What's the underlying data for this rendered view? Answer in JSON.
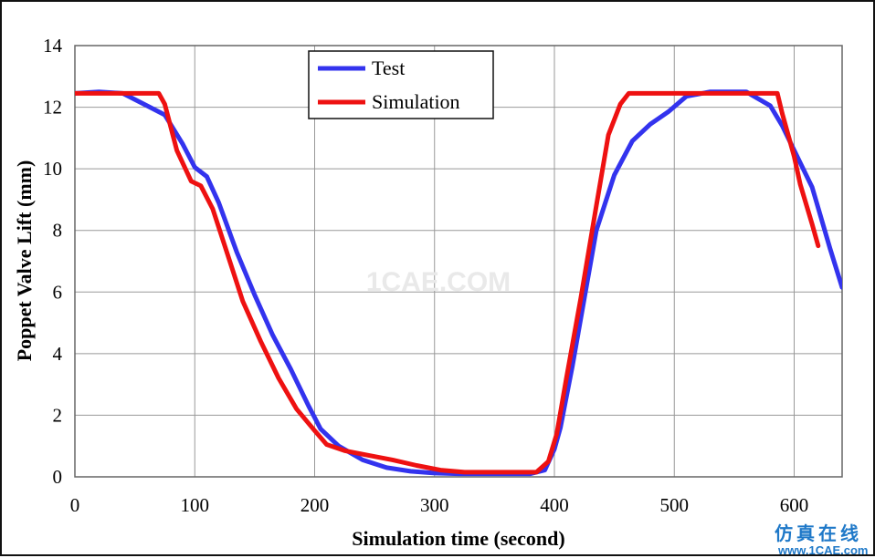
{
  "chart_data": {
    "type": "line",
    "xlabel": "Simulation time (second)",
    "ylabel": "Poppet Valve Lift (mm)",
    "xlim": [
      0,
      640
    ],
    "ylim": [
      0,
      14
    ],
    "x_ticks": [
      "0",
      "100",
      "200",
      "300",
      "400",
      "500",
      "600"
    ],
    "y_ticks": [
      "0",
      "2",
      "4",
      "6",
      "8",
      "10",
      "12",
      "14"
    ],
    "grid": true,
    "legend_position": "top-center",
    "series": [
      {
        "name": "Test",
        "color": "#3333ee",
        "points": [
          [
            0,
            12.45
          ],
          [
            20,
            12.5
          ],
          [
            40,
            12.45
          ],
          [
            60,
            12.05
          ],
          [
            75,
            11.75
          ],
          [
            90,
            10.8
          ],
          [
            100,
            10.05
          ],
          [
            110,
            9.75
          ],
          [
            120,
            8.9
          ],
          [
            135,
            7.3
          ],
          [
            150,
            5.9
          ],
          [
            165,
            4.6
          ],
          [
            180,
            3.5
          ],
          [
            195,
            2.3
          ],
          [
            205,
            1.55
          ],
          [
            220,
            1.0
          ],
          [
            240,
            0.55
          ],
          [
            260,
            0.3
          ],
          [
            280,
            0.18
          ],
          [
            300,
            0.12
          ],
          [
            320,
            0.1
          ],
          [
            350,
            0.1
          ],
          [
            380,
            0.1
          ],
          [
            392,
            0.22
          ],
          [
            400,
            0.9
          ],
          [
            405,
            1.6
          ],
          [
            415,
            3.6
          ],
          [
            425,
            5.8
          ],
          [
            435,
            8.0
          ],
          [
            450,
            9.8
          ],
          [
            465,
            10.9
          ],
          [
            480,
            11.45
          ],
          [
            495,
            11.85
          ],
          [
            510,
            12.35
          ],
          [
            530,
            12.5
          ],
          [
            560,
            12.5
          ],
          [
            580,
            12.05
          ],
          [
            590,
            11.4
          ],
          [
            600,
            10.6
          ],
          [
            615,
            9.4
          ],
          [
            630,
            7.4
          ],
          [
            640,
            6.15
          ]
        ]
      },
      {
        "name": "Simulation",
        "color": "#ee1111",
        "points": [
          [
            0,
            12.45
          ],
          [
            70,
            12.45
          ],
          [
            75,
            12.1
          ],
          [
            85,
            10.6
          ],
          [
            97,
            9.6
          ],
          [
            105,
            9.45
          ],
          [
            115,
            8.7
          ],
          [
            125,
            7.5
          ],
          [
            140,
            5.7
          ],
          [
            155,
            4.4
          ],
          [
            170,
            3.2
          ],
          [
            185,
            2.2
          ],
          [
            200,
            1.5
          ],
          [
            210,
            1.05
          ],
          [
            225,
            0.85
          ],
          [
            245,
            0.7
          ],
          [
            265,
            0.55
          ],
          [
            285,
            0.37
          ],
          [
            305,
            0.22
          ],
          [
            325,
            0.15
          ],
          [
            360,
            0.15
          ],
          [
            385,
            0.15
          ],
          [
            395,
            0.5
          ],
          [
            402,
            1.4
          ],
          [
            410,
            3.2
          ],
          [
            422,
            5.8
          ],
          [
            435,
            8.8
          ],
          [
            445,
            11.1
          ],
          [
            455,
            12.1
          ],
          [
            462,
            12.45
          ],
          [
            520,
            12.45
          ],
          [
            586,
            12.45
          ],
          [
            590,
            11.8
          ],
          [
            600,
            10.4
          ],
          [
            605,
            9.5
          ],
          [
            615,
            8.2
          ],
          [
            620,
            7.5
          ]
        ]
      }
    ]
  },
  "watermark": {
    "center_text": "1CAE.COM",
    "corner_cn": "仿真在线",
    "corner_url": "www.1CAE.com"
  }
}
